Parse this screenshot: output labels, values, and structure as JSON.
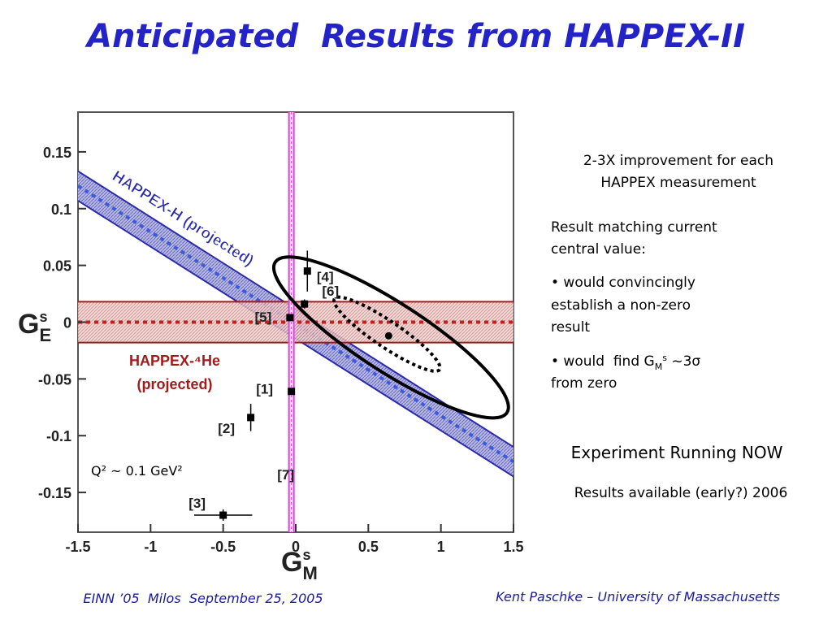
{
  "title": "Anticipated  Results from HAPPEX-II",
  "chart_data": {
    "type": "scatter",
    "xlim": [
      -1.5,
      1.5
    ],
    "ylim": [
      -0.185,
      0.185
    ],
    "xticks": [
      -1.5,
      -1,
      -0.5,
      0,
      0.5,
      1,
      1.5
    ],
    "yticks": [
      0.15,
      0.1,
      0.05,
      0,
      -0.05,
      -0.1,
      -0.15
    ],
    "x_label": {
      "base": "G",
      "sup": "s",
      "sub": "M"
    },
    "y_label": {
      "base": "G",
      "sup": "s",
      "sub": "E"
    },
    "annotation": "Q² ~ 0.1 GeV²",
    "points": [
      {
        "label": "[1]",
        "x": -0.03,
        "y": -0.061
      },
      {
        "label": "[2]",
        "x": -0.31,
        "y": -0.084,
        "yerr": 0.012
      },
      {
        "label": "[3]",
        "x": -0.5,
        "y": -0.17,
        "yerr": 0.005,
        "xerr": 0.2
      },
      {
        "label": "[4]",
        "x": 0.08,
        "y": 0.045,
        "yerr": 0.018
      },
      {
        "label": "[5]",
        "x": -0.04,
        "y": 0.004
      },
      {
        "label": "[6]",
        "x": 0.06,
        "y": 0.016,
        "yerr": 0.004
      }
    ],
    "vline": {
      "label": "[7]",
      "x": -0.03,
      "color": "#e040e0"
    },
    "projection": {
      "x": 0.64,
      "y": -0.012
    },
    "bands": [
      {
        "label": [
          "HAPPEX-H (projected)"
        ],
        "color": "#2a2aa8",
        "x": [
          -1.5,
          1.5
        ],
        "y": [
          0.12,
          -0.123
        ],
        "half_width": 0.013
      },
      {
        "label": [
          "HAPPEX-⁴He",
          "(projected)"
        ],
        "color": "#a01c1c",
        "x": [
          -1.5,
          1.5
        ],
        "y": [
          0,
          0
        ],
        "half_width": 0.018
      }
    ]
  },
  "notes": {
    "improvement": [
      "2-3X improvement for each",
      "HAPPEX measurement"
    ],
    "matching": [
      "Result matching current",
      "central value:"
    ],
    "bullet1": [
      "• would convincingly",
      "establish a non-zero",
      "result"
    ],
    "bullet2": {
      "before": "• would  find G",
      "sub": "M",
      "sup": "s",
      "after": " ~3σ",
      "line2": "from zero"
    },
    "running": "Experiment Running NOW",
    "available": "Results available (early?) 2006"
  },
  "footer": {
    "left": "EINN ’05  Milos  September 25, 2005",
    "right": "Kent Paschke – University of Massachusetts"
  }
}
